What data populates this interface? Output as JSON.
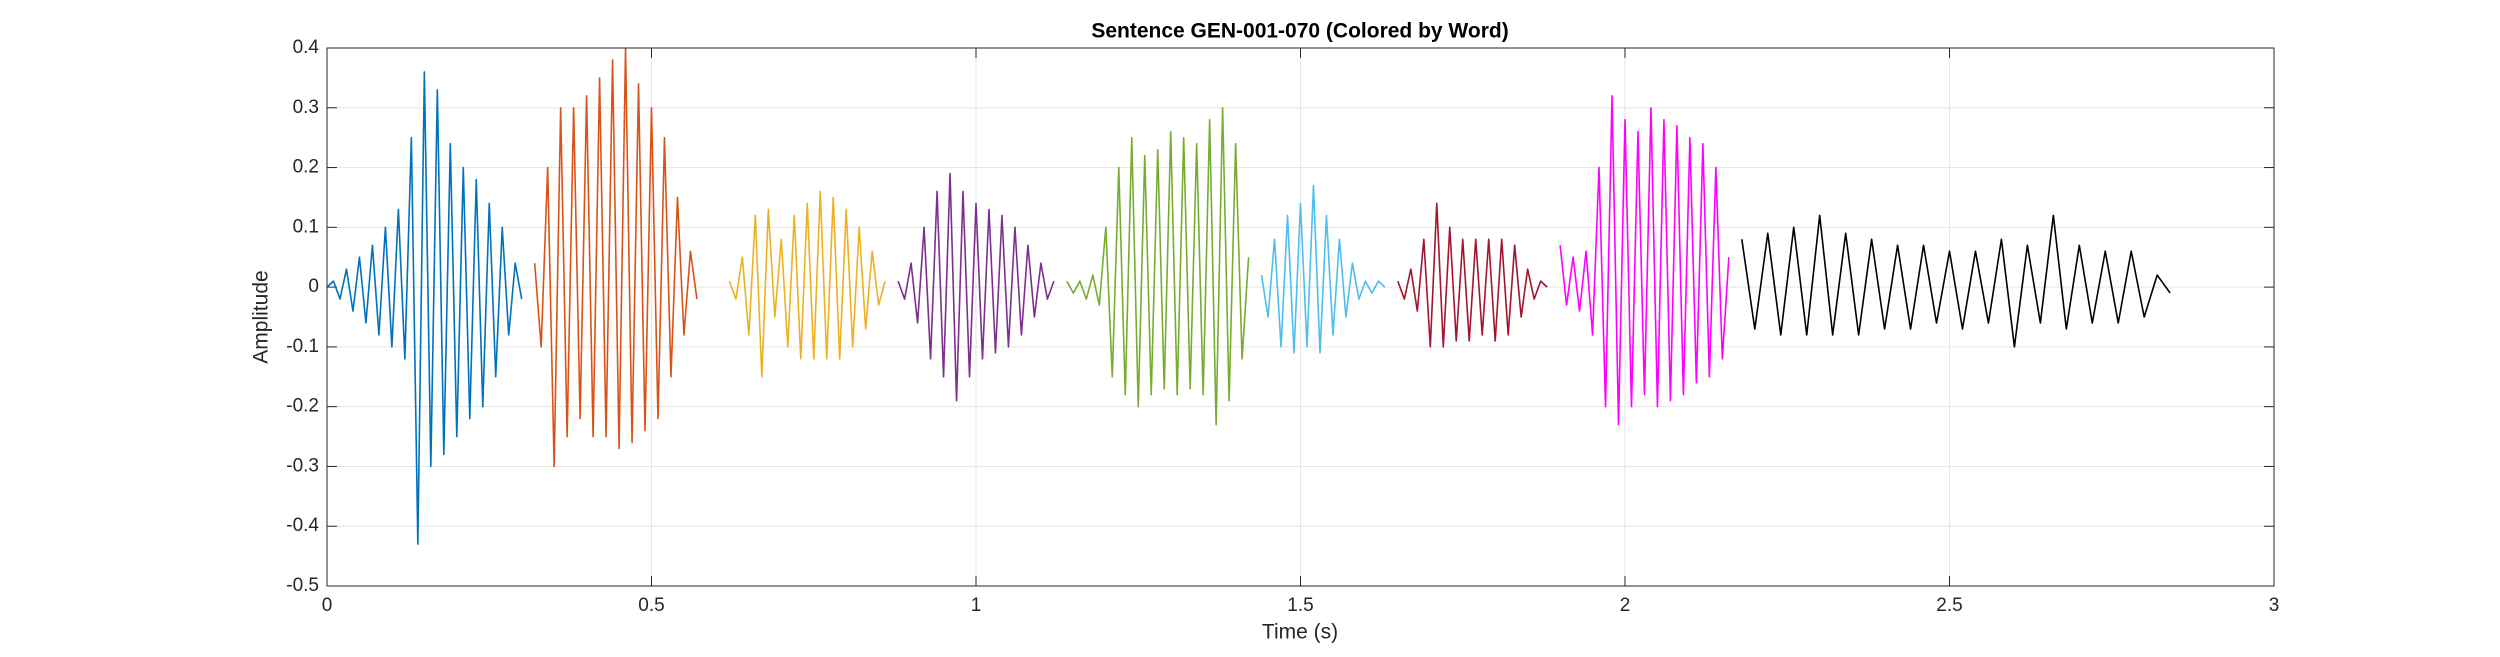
{
  "chart_data": {
    "type": "line",
    "title": "Sentence GEN-001-070 (Colored by Word)",
    "x_label": "Time (s)",
    "y_label": "Amplitude",
    "xlim": [
      0,
      3
    ],
    "xticks": [
      0,
      0.5,
      1,
      1.5,
      2,
      2.5,
      3
    ],
    "ylim": [
      -0.5,
      0.4
    ],
    "yticks": [
      -0.5,
      -0.4,
      -0.3,
      -0.2,
      -0.1,
      0,
      0.1,
      0.2,
      0.3,
      0.4
    ],
    "grid": true,
    "series": [
      {
        "color": "#0072BD",
        "x": [
          0,
          0.01,
          0.02,
          0.03,
          0.04,
          0.05,
          0.06,
          0.07,
          0.08,
          0.09,
          0.1,
          0.11,
          0.12,
          0.13,
          0.14,
          0.15,
          0.16,
          0.17,
          0.18,
          0.19,
          0.2,
          0.21,
          0.22,
          0.23,
          0.24,
          0.25,
          0.26,
          0.27,
          0.28,
          0.29,
          0.3
        ],
        "values": [
          0,
          0.01,
          -0.02,
          0.03,
          -0.04,
          0.05,
          -0.06,
          0.07,
          -0.08,
          0.1,
          -0.1,
          0.13,
          -0.12,
          0.25,
          -0.43,
          0.36,
          -0.3,
          0.33,
          -0.28,
          0.24,
          -0.25,
          0.2,
          -0.22,
          0.18,
          -0.2,
          0.14,
          -0.15,
          0.1,
          -0.08,
          0.04,
          -0.02
        ]
      },
      {
        "color": "#D95319",
        "x": [
          0.32,
          0.33,
          0.34,
          0.35,
          0.36,
          0.37,
          0.38,
          0.39,
          0.4,
          0.41,
          0.42,
          0.43,
          0.44,
          0.45,
          0.46,
          0.47,
          0.48,
          0.49,
          0.5,
          0.51,
          0.52,
          0.53,
          0.54,
          0.55,
          0.56,
          0.57
        ],
        "values": [
          0.04,
          -0.1,
          0.2,
          -0.3,
          0.3,
          -0.25,
          0.3,
          -0.22,
          0.32,
          -0.25,
          0.35,
          -0.25,
          0.38,
          -0.27,
          0.4,
          -0.26,
          0.34,
          -0.24,
          0.3,
          -0.22,
          0.25,
          -0.15,
          0.15,
          -0.08,
          0.06,
          -0.02
        ]
      },
      {
        "color": "#EDB120",
        "x": [
          0.62,
          0.63,
          0.64,
          0.65,
          0.66,
          0.67,
          0.68,
          0.69,
          0.7,
          0.71,
          0.72,
          0.73,
          0.74,
          0.75,
          0.76,
          0.77,
          0.78,
          0.79,
          0.8,
          0.81,
          0.82,
          0.83,
          0.84,
          0.85,
          0.86
        ],
        "values": [
          0.01,
          -0.02,
          0.05,
          -0.08,
          0.12,
          -0.15,
          0.13,
          -0.05,
          0.08,
          -0.1,
          0.12,
          -0.12,
          0.14,
          -0.12,
          0.16,
          -0.12,
          0.15,
          -0.12,
          0.13,
          -0.1,
          0.1,
          -0.07,
          0.06,
          -0.03,
          0.01
        ]
      },
      {
        "color": "#7E2F8E",
        "x": [
          0.88,
          0.89,
          0.9,
          0.91,
          0.92,
          0.93,
          0.94,
          0.95,
          0.96,
          0.97,
          0.98,
          0.99,
          1,
          1.01,
          1.02,
          1.03,
          1.04,
          1.05,
          1.06,
          1.07,
          1.08,
          1.09,
          1.1,
          1.11,
          1.12
        ],
        "values": [
          0.01,
          -0.02,
          0.04,
          -0.06,
          0.1,
          -0.12,
          0.16,
          -0.15,
          0.19,
          -0.19,
          0.16,
          -0.15,
          0.14,
          -0.12,
          0.13,
          -0.11,
          0.12,
          -0.1,
          0.1,
          -0.08,
          0.07,
          -0.05,
          0.04,
          -0.02,
          0.01
        ]
      },
      {
        "color": "#77AC30",
        "x": [
          1.14,
          1.15,
          1.16,
          1.17,
          1.18,
          1.19,
          1.2,
          1.21,
          1.22,
          1.23,
          1.24,
          1.25,
          1.26,
          1.27,
          1.28,
          1.29,
          1.3,
          1.31,
          1.32,
          1.33,
          1.34,
          1.35,
          1.36,
          1.37,
          1.38,
          1.39,
          1.4,
          1.41,
          1.42
        ],
        "values": [
          0.01,
          -0.01,
          0.01,
          -0.02,
          0.02,
          -0.03,
          0.1,
          -0.15,
          0.2,
          -0.18,
          0.25,
          -0.2,
          0.22,
          -0.18,
          0.23,
          -0.17,
          0.26,
          -0.18,
          0.25,
          -0.17,
          0.24,
          -0.18,
          0.28,
          -0.23,
          0.3,
          -0.19,
          0.24,
          -0.12,
          0.05
        ]
      },
      {
        "color": "#4DBEEE",
        "x": [
          1.44,
          1.45,
          1.46,
          1.47,
          1.48,
          1.49,
          1.5,
          1.51,
          1.52,
          1.53,
          1.54,
          1.55,
          1.56,
          1.57,
          1.58,
          1.59,
          1.6,
          1.61,
          1.62,
          1.63
        ],
        "values": [
          0.02,
          -0.05,
          0.08,
          -0.1,
          0.12,
          -0.11,
          0.14,
          -0.1,
          0.17,
          -0.11,
          0.12,
          -0.08,
          0.08,
          -0.05,
          0.04,
          -0.02,
          0.01,
          -0.01,
          0.01,
          0
        ]
      },
      {
        "color": "#A2142F",
        "x": [
          1.65,
          1.66,
          1.67,
          1.68,
          1.69,
          1.7,
          1.71,
          1.72,
          1.73,
          1.74,
          1.75,
          1.76,
          1.77,
          1.78,
          1.79,
          1.8,
          1.81,
          1.82,
          1.83,
          1.84,
          1.85,
          1.86,
          1.87,
          1.88
        ],
        "values": [
          0.01,
          -0.02,
          0.03,
          -0.04,
          0.08,
          -0.1,
          0.14,
          -0.1,
          0.1,
          -0.09,
          0.08,
          -0.09,
          0.08,
          -0.08,
          0.08,
          -0.09,
          0.08,
          -0.08,
          0.07,
          -0.05,
          0.03,
          -0.02,
          0.01,
          0
        ]
      },
      {
        "color": "#FF00FF",
        "x": [
          1.9,
          1.91,
          1.92,
          1.93,
          1.94,
          1.95,
          1.96,
          1.97,
          1.98,
          1.99,
          2,
          2.01,
          2.02,
          2.03,
          2.04,
          2.05,
          2.06,
          2.07,
          2.08,
          2.09,
          2.1,
          2.11,
          2.12,
          2.13,
          2.14,
          2.15,
          2.16
        ],
        "values": [
          0.07,
          -0.03,
          0.05,
          -0.04,
          0.06,
          -0.08,
          0.2,
          -0.2,
          0.32,
          -0.23,
          0.28,
          -0.2,
          0.26,
          -0.18,
          0.3,
          -0.2,
          0.28,
          -0.19,
          0.27,
          -0.18,
          0.25,
          -0.16,
          0.24,
          -0.15,
          0.2,
          -0.12,
          0.05
        ]
      },
      {
        "color": "#000000",
        "x": [
          2.18,
          2.2,
          2.22,
          2.24,
          2.26,
          2.28,
          2.3,
          2.32,
          2.34,
          2.36,
          2.38,
          2.4,
          2.42,
          2.44,
          2.46,
          2.48,
          2.5,
          2.52,
          2.54,
          2.56,
          2.58,
          2.6,
          2.62,
          2.64,
          2.66,
          2.68,
          2.7,
          2.72,
          2.74,
          2.76,
          2.78,
          2.8,
          2.82,
          2.84
        ],
        "values": [
          0.08,
          -0.07,
          0.09,
          -0.08,
          0.1,
          -0.08,
          0.12,
          -0.08,
          0.09,
          -0.08,
          0.08,
          -0.07,
          0.07,
          -0.07,
          0.07,
          -0.06,
          0.06,
          -0.07,
          0.06,
          -0.06,
          0.08,
          -0.1,
          0.07,
          -0.06,
          0.12,
          -0.07,
          0.07,
          -0.06,
          0.06,
          -0.06,
          0.06,
          -0.05,
          0.02,
          -0.01
        ]
      }
    ]
  }
}
